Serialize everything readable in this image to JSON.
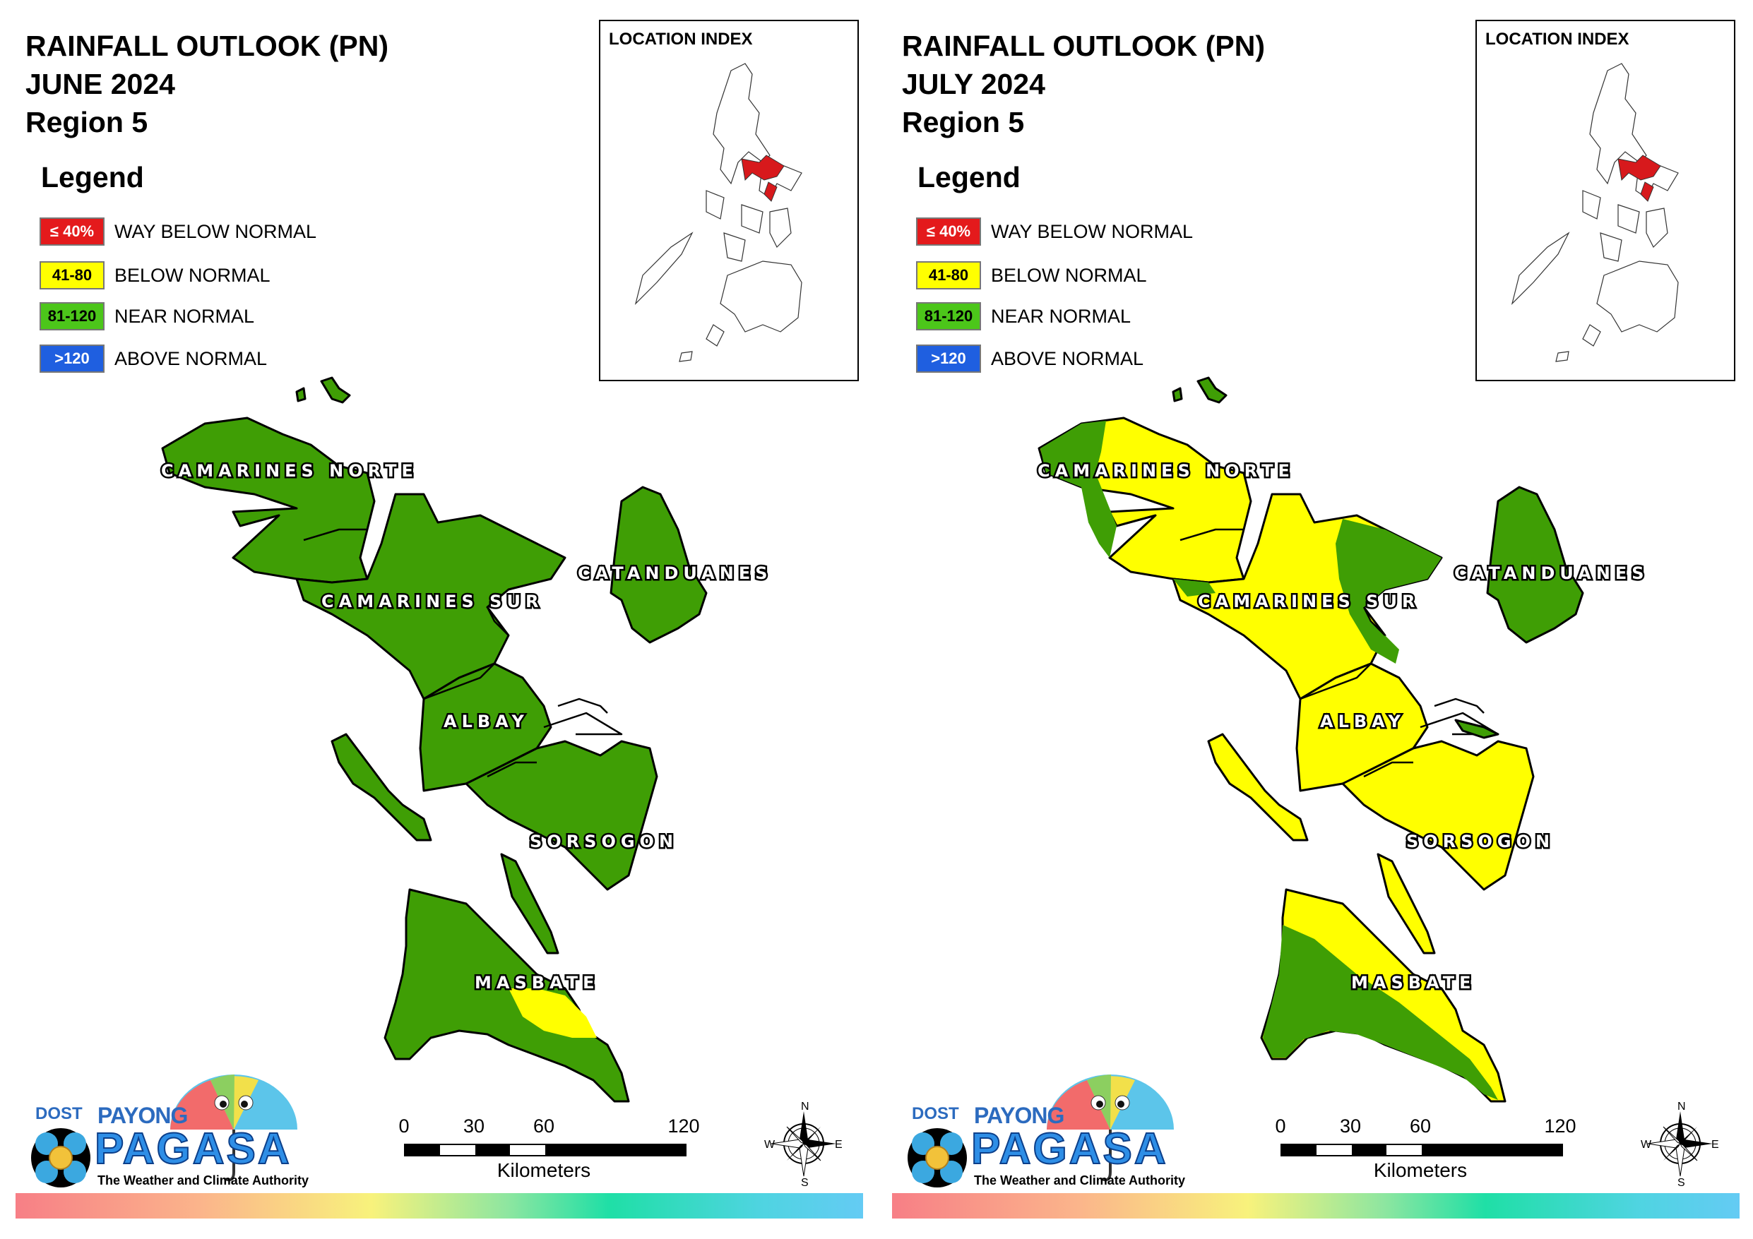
{
  "panels": [
    {
      "title_line1": "RAINFALL OUTLOOK (PN)",
      "title_line2": "JUNE 2024",
      "title_line3": "Region 5"
    },
    {
      "title_line1": "RAINFALL OUTLOOK (PN)",
      "title_line2": "JULY 2024",
      "title_line3": "Region 5"
    }
  ],
  "legend": {
    "heading": "Legend",
    "items": [
      {
        "range": "≤ 40%",
        "label": "WAY BELOW NORMAL",
        "color": "#e41a1c",
        "text_color": "#ffffff"
      },
      {
        "range": "41-80",
        "label": "BELOW NORMAL",
        "color": "#ffff00",
        "text_color": "#000000"
      },
      {
        "range": "81-120",
        "label": "NEAR NORMAL",
        "color": "#4cc61a",
        "text_color": "#000000"
      },
      {
        "range": ">120",
        "label": "ABOVE NORMAL",
        "color": "#1f5fe0",
        "text_color": "#ffffff"
      }
    ]
  },
  "inset": {
    "title": "LOCATION INDEX",
    "highlight_color": "#d7191c"
  },
  "provinces": {
    "camarines_norte": "CAMARINES NORTE",
    "camarines_sur": "CAMARINES SUR",
    "catanduanes": "CATANDUANES",
    "albay": "ALBAY",
    "sorsogon": "SORSOGON",
    "masbate": "MASBATE"
  },
  "map_colors": {
    "near_normal": "#3f9e05",
    "below_normal": "#ffff00",
    "outline": "#000000"
  },
  "scale": {
    "ticks": [
      "0",
      "30",
      "60",
      "120"
    ],
    "units": "Kilometers"
  },
  "compass": {
    "n": "N",
    "s": "S",
    "e": "E",
    "w": "W"
  },
  "logo": {
    "dost": "DOST",
    "payong": "PAYONG",
    "pagasa": "PAGASA",
    "tagline": "The Weather and Climate Authority"
  }
}
